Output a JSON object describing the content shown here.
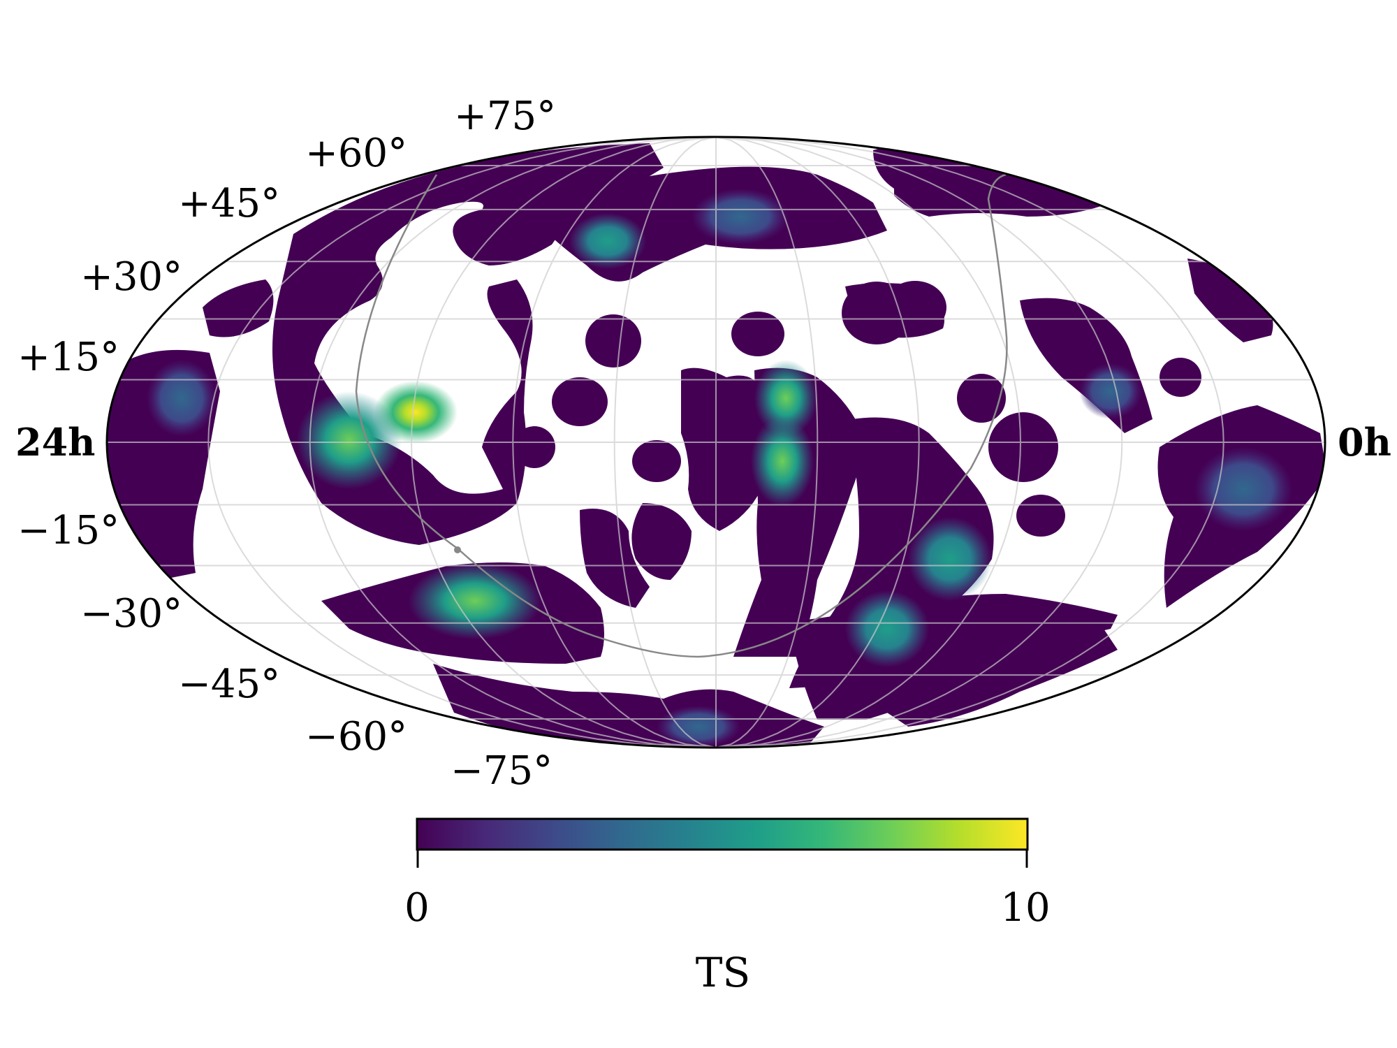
{
  "map": {
    "projection": "mollweide",
    "ra_left_label": "24h",
    "ra_right_label": "0h",
    "dec_labels": [
      "+75°",
      "+60°",
      "+45°",
      "+30°",
      "+15°",
      "−15°",
      "−30°",
      "−45°",
      "−60°",
      "−75°"
    ],
    "grid": true,
    "colormap": "viridis",
    "mask_color": "#ffffff",
    "curve_color": "#888888"
  },
  "colorbar": {
    "min_label": "0",
    "max_label": "10",
    "title": "TS",
    "range": [
      0,
      10
    ],
    "stops": [
      "#440154",
      "#482878",
      "#3e4989",
      "#31688e",
      "#26828e",
      "#1f9e89",
      "#35b779",
      "#6ece58",
      "#b5de2b",
      "#fde725"
    ]
  }
}
